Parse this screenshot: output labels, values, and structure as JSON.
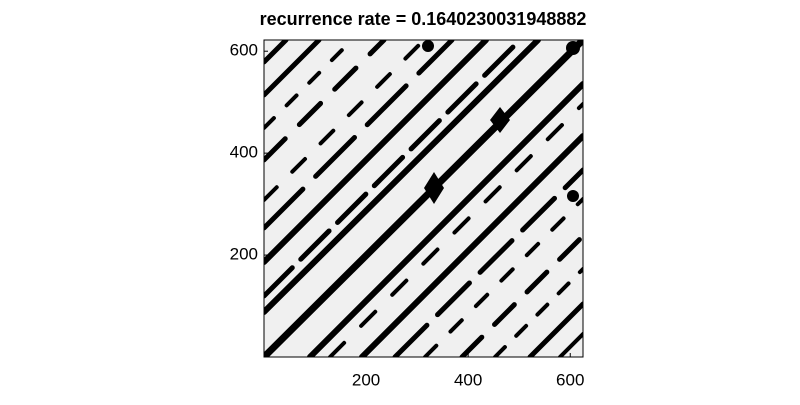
{
  "chart_data": {
    "type": "heatmap",
    "title": "recurrence rate = 0.1640230031948882",
    "xlim": [
      0,
      625
    ],
    "ylim": [
      0,
      622
    ],
    "xticks": [
      200,
      400,
      600
    ],
    "yticks": [
      200,
      400,
      600
    ]
  }
}
